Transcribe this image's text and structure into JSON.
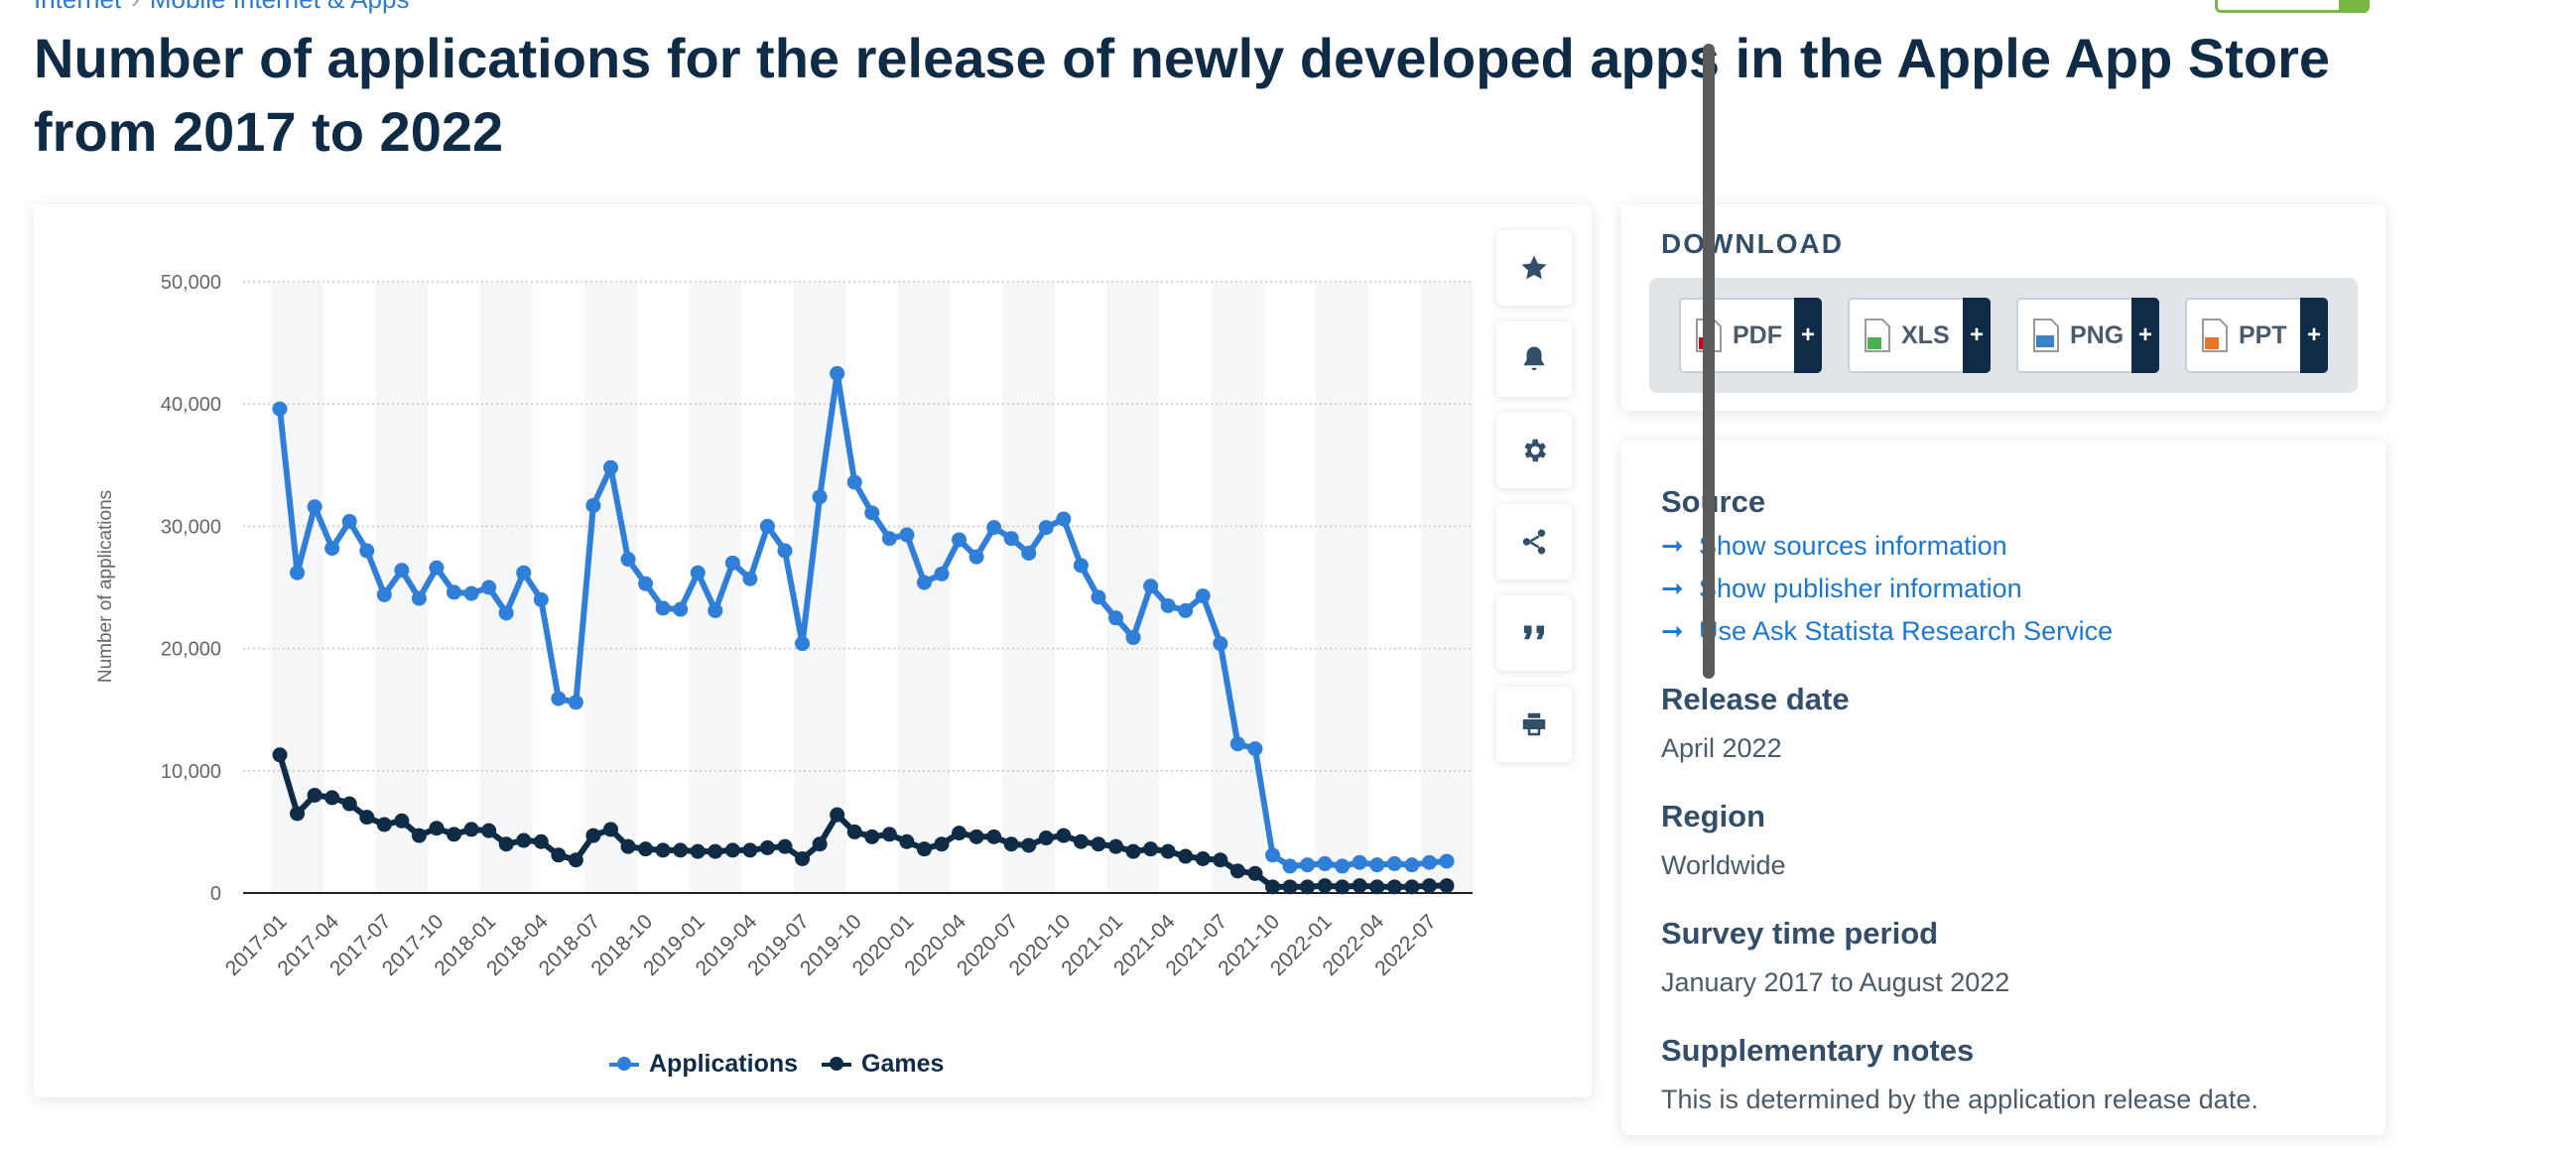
{
  "breadcrumb": [
    "Internet",
    "Mobile Internet & Apps"
  ],
  "page_title": "Number of applications for the release of newly developed apps in the Apple App Store from 2017 to 2022",
  "download": {
    "title": "DOWNLOAD",
    "buttons": [
      {
        "label": "PDF",
        "icon": "pdf-file-icon",
        "color": "#d0021b"
      },
      {
        "label": "XLS",
        "icon": "xls-file-icon",
        "color": "#4caf50"
      },
      {
        "label": "PNG",
        "icon": "png-file-icon",
        "color": "#3b82c4"
      },
      {
        "label": "PPT",
        "icon": "ppt-file-icon",
        "color": "#e8732a"
      }
    ],
    "plus": "+"
  },
  "tools": [
    "star-icon",
    "bell-icon",
    "gear-icon",
    "share-icon",
    "quote-icon",
    "print-icon"
  ],
  "info": {
    "source_heading": "Source",
    "links": [
      "Show sources information",
      "Show publisher information",
      "Use Ask Statista Research Service"
    ],
    "release_heading": "Release date",
    "release_value": "April 2022",
    "region_heading": "Region",
    "region_value": "Worldwide",
    "survey_heading": "Survey time period",
    "survey_value": "January 2017 to August 2022",
    "notes_heading": "Supplementary notes",
    "notes_value": "This is determined by the application release date."
  },
  "chart_data": {
    "type": "line",
    "title": "",
    "xlabel": "",
    "ylabel": "Number of applications",
    "ylim": [
      0,
      50000
    ],
    "yticks": [
      "0",
      "10,000",
      "20,000",
      "30,000",
      "40,000",
      "50,000"
    ],
    "ytick_values": [
      0,
      10000,
      20000,
      30000,
      40000,
      50000
    ],
    "xtick_labels": [
      "2017-01",
      "2017-04",
      "2017-07",
      "2017-10",
      "2018-01",
      "2018-04",
      "2018-07",
      "2018-10",
      "2019-01",
      "2019-04",
      "2019-07",
      "2019-10",
      "2020-01",
      "2020-04",
      "2020-07",
      "2020-10",
      "2021-01",
      "2021-04",
      "2021-07",
      "2021-10",
      "2022-01",
      "2022-04",
      "2022-07"
    ],
    "grid": "horizontal dotted",
    "legend_position": "bottom",
    "colors": {
      "Applications": "#2f7ed8",
      "Games": "#0f2b46"
    },
    "series": [
      {
        "name": "Applications",
        "values": [
          39600,
          26200,
          31600,
          28200,
          30400,
          28000,
          24400,
          26400,
          24100,
          26600,
          24600,
          24500,
          25000,
          22900,
          26200,
          24000,
          15900,
          15600,
          31700,
          34800,
          27300,
          25300,
          23300,
          23200,
          26200,
          23100,
          27000,
          25700,
          30000,
          28000,
          20400,
          32400,
          42500,
          33600,
          31100,
          29000,
          29300,
          25400,
          26100,
          28900,
          27500,
          29900,
          29000,
          27800,
          29900,
          30600,
          26800,
          24200,
          22500,
          20900,
          25100,
          23500,
          23100,
          24300,
          20400,
          12200,
          11800,
          3100,
          2200,
          2300,
          2400,
          2200,
          2500,
          2300,
          2400,
          2300,
          2500,
          2600
        ]
      },
      {
        "name": "Games",
        "values": [
          11300,
          6500,
          8000,
          7800,
          7300,
          6200,
          5600,
          5900,
          4700,
          5300,
          4800,
          5200,
          5100,
          4000,
          4300,
          4200,
          3100,
          2700,
          4700,
          5200,
          3800,
          3600,
          3500,
          3500,
          3400,
          3400,
          3500,
          3500,
          3700,
          3800,
          2800,
          4000,
          6400,
          5000,
          4600,
          4800,
          4200,
          3600,
          4000,
          4900,
          4600,
          4600,
          4000,
          3900,
          4500,
          4700,
          4200,
          4000,
          3800,
          3400,
          3600,
          3400,
          3000,
          2800,
          2700,
          1800,
          1600,
          500,
          500,
          500,
          600,
          500,
          600,
          500,
          500,
          500,
          600,
          600
        ]
      }
    ]
  }
}
